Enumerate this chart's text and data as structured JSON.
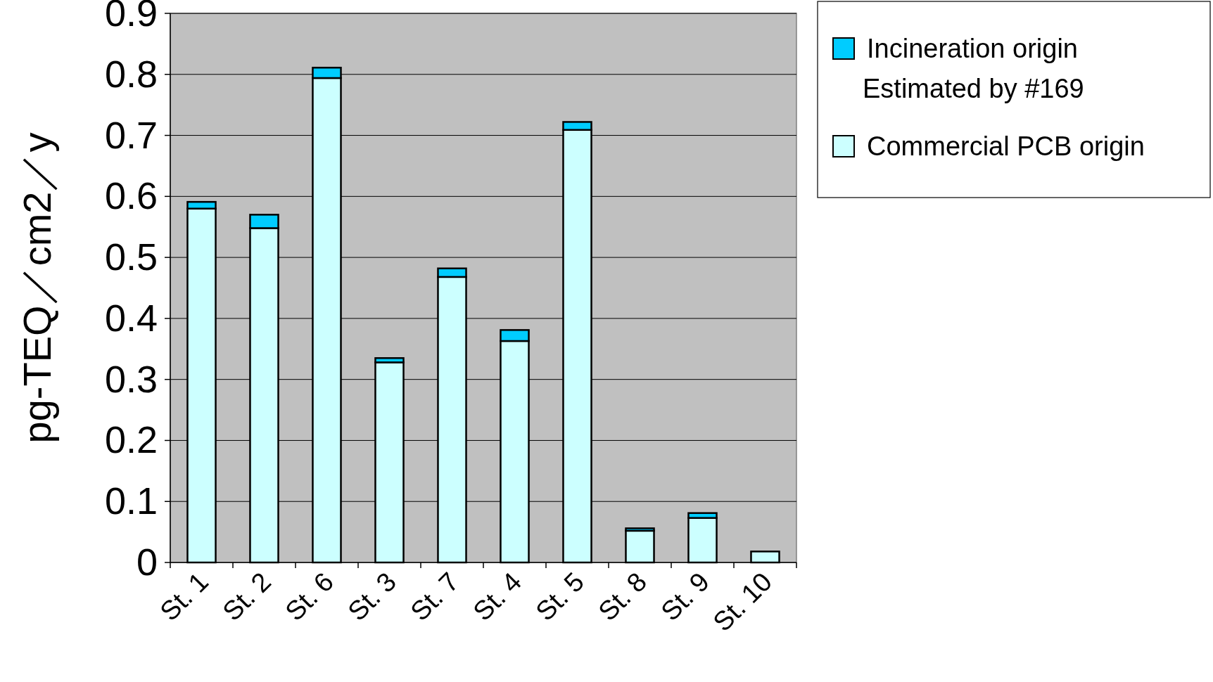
{
  "chart_data": {
    "type": "bar",
    "stacked": true,
    "ylabel": "pg-TEQ／cm2／y",
    "categories": [
      "St. 1",
      "St. 2",
      "St. 6",
      "St. 3",
      "St. 7",
      "St. 4",
      "St. 5",
      "St. 8",
      "St. 9",
      "St. 10"
    ],
    "series": [
      {
        "name": "Commercial PCB origin",
        "color": "#ccffff",
        "values": [
          0.58,
          0.548,
          0.794,
          0.328,
          0.468,
          0.363,
          0.709,
          0.052,
          0.073,
          0.018
        ]
      },
      {
        "name": "Incineration origin\nEstimated by #169",
        "color": "#00ccff",
        "values": [
          0.011,
          0.022,
          0.017,
          0.007,
          0.014,
          0.018,
          0.013,
          0.004,
          0.008,
          0
        ]
      }
    ],
    "ylim": [
      0,
      0.9
    ],
    "yticks": [
      0,
      0.1,
      0.2,
      0.3,
      0.4,
      0.5,
      0.6,
      0.7,
      0.8,
      0.9
    ],
    "grid": "y",
    "legend": "top right"
  }
}
